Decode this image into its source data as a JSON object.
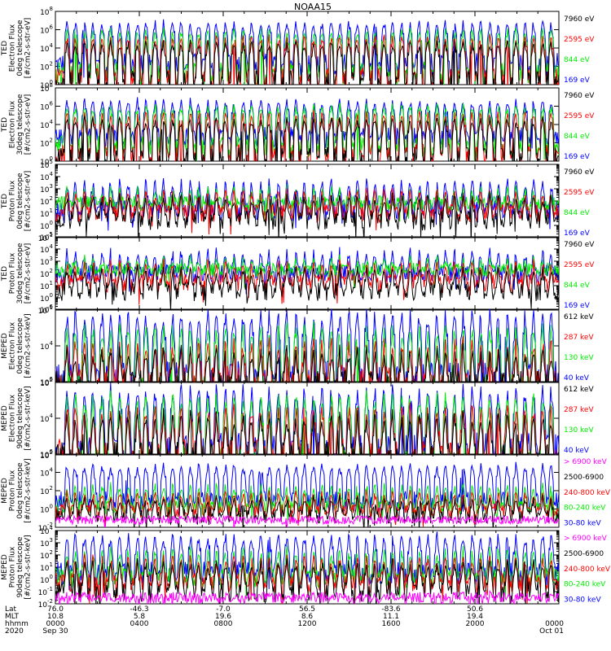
{
  "chart_data": {
    "type": "line",
    "title": "NOAA15",
    "panels": [
      {
        "ylabel": [
          "TED",
          "Electron Flux",
          "0deg telescope",
          "[#/cm2-s-str-eV]"
        ],
        "ytick_exps": [
          0,
          2,
          4,
          6,
          8
        ],
        "channels": [
          {
            "name": "7960 eV",
            "color": "#000000",
            "baseline": 0.35,
            "peak": 5.0
          },
          {
            "name": "2595 eV",
            "color": "#ff0000",
            "baseline": 0.6,
            "peak": 5.6
          },
          {
            "name": "844 eV",
            "color": "#00ee00",
            "baseline": 1.2,
            "peak": 6.3
          },
          {
            "name": "169 eV",
            "color": "#0000ff",
            "baseline": 2.2,
            "peak": 7.2
          }
        ]
      },
      {
        "ylabel": [
          "TED",
          "Electron Flux",
          "30deg telescope",
          "[#/cm2-s-str-eV]"
        ],
        "ytick_exps": [
          0,
          2,
          4,
          6,
          8
        ],
        "channels": [
          {
            "name": "7960 eV",
            "color": "#000000",
            "baseline": 0.35,
            "peak": 5.0
          },
          {
            "name": "2595 eV",
            "color": "#ff0000",
            "baseline": 0.7,
            "peak": 5.6
          },
          {
            "name": "844 eV",
            "color": "#00ee00",
            "baseline": 1.6,
            "peak": 6.4
          },
          {
            "name": "169 eV",
            "color": "#0000ff",
            "baseline": 2.6,
            "peak": 7.0
          }
        ]
      },
      {
        "ylabel": [
          "TED",
          "Proton Flux",
          "0deg telescope",
          "[#/cm2-s-str-eV]"
        ],
        "ytick_exps": [
          -1,
          0,
          1,
          2,
          3,
          4,
          5
        ],
        "channels": [
          {
            "name": "7960 eV",
            "color": "#000000",
            "baseline": 0.4,
            "peak": 2.8
          },
          {
            "name": "2595 eV",
            "color": "#ff0000",
            "baseline": 1.0,
            "peak": 3.2
          },
          {
            "name": "844 eV",
            "color": "#00ee00",
            "baseline": 1.8,
            "peak": 3.4
          },
          {
            "name": "169 eV",
            "color": "#0000ff",
            "baseline": 1.2,
            "peak": 4.0
          }
        ]
      },
      {
        "ylabel": [
          "TED",
          "Proton Flux",
          "30deg telescope",
          "[#/cm2-s-str-eV]"
        ],
        "ytick_exps": [
          -1,
          0,
          1,
          2,
          3,
          4,
          5
        ],
        "channels": [
          {
            "name": "7960 eV",
            "color": "#000000",
            "baseline": 0.5,
            "peak": 2.8
          },
          {
            "name": "2595 eV",
            "color": "#ff0000",
            "baseline": 1.2,
            "peak": 3.3
          },
          {
            "name": "844 eV",
            "color": "#00ee00",
            "baseline": 2.3,
            "peak": 3.6
          },
          {
            "name": "169 eV",
            "color": "#0000ff",
            "baseline": 2.0,
            "peak": 4.2
          }
        ]
      },
      {
        "ylabel": [
          "MEPED",
          "Electron Flux",
          "0deg telescope",
          "[#/cm2-s-str-keV]"
        ],
        "ytick_exps": [
          2,
          4,
          6
        ],
        "channels": [
          {
            "name": "612 keV",
            "color": "#000000",
            "baseline": 1.9,
            "peak": 4.2
          },
          {
            "name": "287 keV",
            "color": "#ff0000",
            "baseline": 2.0,
            "peak": 4.6
          },
          {
            "name": "130 keV",
            "color": "#00ee00",
            "baseline": 1.4,
            "peak": 5.4
          },
          {
            "name": "40 keV",
            "color": "#0000ff",
            "baseline": 2.1,
            "peak": 6.2
          }
        ]
      },
      {
        "ylabel": [
          "MEPED",
          "Electron Flux",
          "90deg telescope",
          "[#/cm2-s-str-keV]"
        ],
        "ytick_exps": [
          2,
          4,
          6
        ],
        "channels": [
          {
            "name": "612 keV",
            "color": "#000000",
            "baseline": 1.9,
            "peak": 4.6
          },
          {
            "name": "287 keV",
            "color": "#ff0000",
            "baseline": 2.0,
            "peak": 5.0
          },
          {
            "name": "130 keV",
            "color": "#00ee00",
            "baseline": 1.4,
            "peak": 5.6
          },
          {
            "name": "40 keV",
            "color": "#0000ff",
            "baseline": 2.2,
            "peak": 6.0
          }
        ]
      },
      {
        "ylabel": [
          "MEPED",
          "Proton Flux",
          "0deg telescope",
          "[#/cm2-s-str-keV]"
        ],
        "ytick_exps": [
          -2,
          0,
          2,
          4,
          6
        ],
        "channels": [
          {
            "name": "> 6900 keV",
            "color": "#ff00ff",
            "baseline": -1.2,
            "peak": -0.6
          },
          {
            "name": "2500-6900",
            "color": "#000000",
            "baseline": -0.8,
            "peak": 1.6
          },
          {
            "name": "240-800 keV",
            "color": "#ff0000",
            "baseline": -0.2,
            "peak": 2.2
          },
          {
            "name": "80-240 keV",
            "color": "#00ee00",
            "baseline": 0.2,
            "peak": 3.0
          },
          {
            "name": "30-80 keV",
            "color": "#0000ff",
            "baseline": 0.8,
            "peak": 5.2
          }
        ]
      },
      {
        "ylabel": [
          "MEPED",
          "Proton Flux",
          "90deg telescope",
          "[#/cm2-s-str-keV]"
        ],
        "ytick_exps": [
          -2,
          -1,
          0,
          1,
          2,
          3,
          4
        ],
        "channels": [
          {
            "name": "> 6900 keV",
            "color": "#ff00ff",
            "baseline": -1.5,
            "peak": -0.9
          },
          {
            "name": "2500-6900",
            "color": "#000000",
            "baseline": -1.0,
            "peak": 1.8
          },
          {
            "name": "240-800 keV",
            "color": "#ff0000",
            "baseline": -0.3,
            "peak": 2.2
          },
          {
            "name": "80-240 keV",
            "color": "#00ee00",
            "baseline": 0.1,
            "peak": 2.8
          },
          {
            "name": "30-80 keV",
            "color": "#0000ff",
            "baseline": 0.5,
            "peak": 4.0
          }
        ]
      }
    ],
    "x_axis": {
      "row_labels": [
        "Lat",
        "MLT",
        "hhmm",
        "2020"
      ],
      "ticks": [
        {
          "hour": 0,
          "lat": "76.0",
          "mlt": "10.8",
          "hhmm": "0000",
          "date": "Sep 30"
        },
        {
          "hour": 4,
          "lat": "-46.3",
          "mlt": "5.8",
          "hhmm": "0400",
          "date": ""
        },
        {
          "hour": 8,
          "lat": "-7.0",
          "mlt": "19.6",
          "hhmm": "0800",
          "date": ""
        },
        {
          "hour": 12,
          "lat": "56.5",
          "mlt": "8.6",
          "hhmm": "1200",
          "date": ""
        },
        {
          "hour": 16,
          "lat": "-83.6",
          "mlt": "11.1",
          "hhmm": "1600",
          "date": ""
        },
        {
          "hour": 20,
          "lat": "50.6",
          "mlt": "19.4",
          "hhmm": "2000",
          "date": ""
        },
        {
          "hour": 24,
          "lat": "",
          "mlt": "",
          "hhmm": "0000",
          "date": "Oct 01"
        }
      ]
    }
  }
}
